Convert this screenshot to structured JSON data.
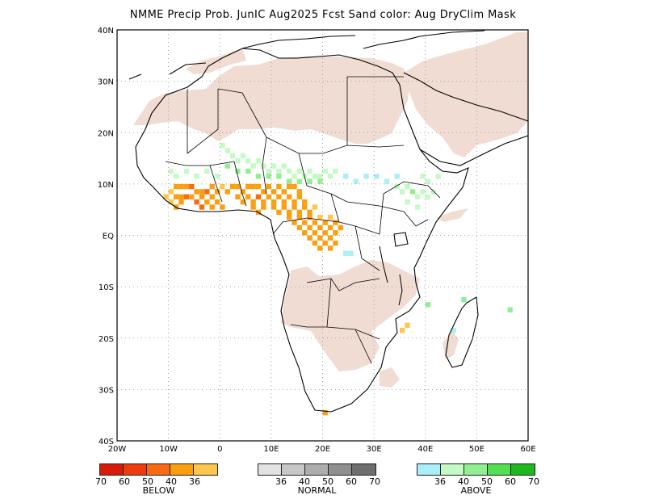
{
  "title": "NMME Precip Prob. JunIC   Aug2025 Fcst   Sand color: Aug DryClim Mask",
  "map": {
    "lon_range": [
      -20,
      60
    ],
    "lat_range": [
      -40,
      40
    ],
    "lon_labels": [
      "20W",
      "10W",
      "0",
      "10E",
      "20E",
      "30E",
      "40E",
      "50E",
      "60E"
    ],
    "lat_labels": [
      "40N",
      "30N",
      "20N",
      "10N",
      "EQ",
      "10S",
      "20S",
      "30S",
      "40S"
    ],
    "land_outline_color": "#000000",
    "dry_mask_color": "#f0dcd2"
  },
  "legends": {
    "below": {
      "name": "BELOW",
      "ticks": [
        "70",
        "60",
        "50",
        "40",
        "36"
      ],
      "colors": [
        "#d71a0a",
        "#ee3b0e",
        "#f86b12",
        "#fb9e0f",
        "#ffc64d"
      ]
    },
    "normal": {
      "name": "NORMAL",
      "ticks": [
        "36",
        "40",
        "50",
        "60",
        "70"
      ],
      "colors": [
        "#e2e2e2",
        "#c7c7c7",
        "#adadad",
        "#8f8f8f",
        "#6e6e6e"
      ]
    },
    "above": {
      "name": "ABOVE",
      "ticks": [
        "36",
        "40",
        "50",
        "60",
        "70"
      ],
      "colors": [
        "#aaeef8",
        "#c5f9c5",
        "#91ef91",
        "#52e052",
        "#1eb81e"
      ]
    }
  }
}
